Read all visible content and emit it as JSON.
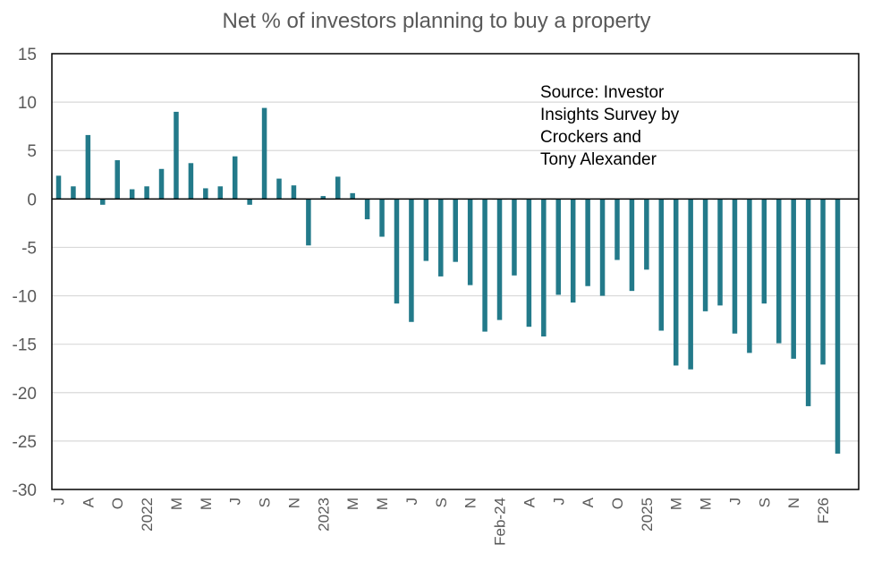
{
  "chart_data": {
    "type": "bar",
    "title": "Net % of investors planning to buy a property",
    "xlabel": "",
    "ylabel": "",
    "ylim": [
      -30,
      15
    ],
    "yticks": [
      15,
      10,
      5,
      0,
      -5,
      -10,
      -15,
      -20,
      -25,
      -30
    ],
    "grid": true,
    "legend": "none",
    "bar_color": "#237a8a",
    "annotation": [
      "Source: Investor",
      "Insights Survey by",
      "Crockers and",
      "Tony Alexander"
    ],
    "categories": [
      "J",
      "",
      "A",
      "",
      "O",
      "",
      "2022",
      "",
      "M",
      "",
      "M",
      "",
      "J",
      "",
      "S",
      "",
      "N",
      "",
      "2023",
      "",
      "M",
      "",
      "M",
      "",
      "J",
      "",
      "S",
      "",
      "N",
      "",
      "Feb-24",
      "",
      "A",
      "",
      "J",
      "",
      "A",
      "",
      "O",
      "",
      "2025",
      "",
      "M",
      "",
      "M",
      "",
      "J",
      "",
      "S",
      "",
      "N",
      "",
      "F26",
      ""
    ],
    "values": [
      2.4,
      1.3,
      6.6,
      -0.6,
      4.0,
      1.0,
      1.3,
      3.1,
      9.0,
      3.7,
      1.1,
      1.3,
      4.4,
      -0.6,
      9.4,
      2.1,
      1.4,
      -4.8,
      0.3,
      2.3,
      0.6,
      -2.1,
      -3.9,
      -10.8,
      -12.7,
      -6.4,
      -8.0,
      -6.5,
      -8.9,
      -13.7,
      -12.5,
      -7.9,
      -13.2,
      -14.2,
      -9.9,
      -10.7,
      -9.0,
      -10.0,
      -6.3,
      -9.5,
      -7.3,
      -13.6,
      -17.2,
      -17.6,
      -11.6,
      -11.0,
      -13.9,
      -15.9,
      -10.8,
      -14.9,
      -16.5,
      -21.4,
      -17.1,
      -26.3
    ]
  }
}
